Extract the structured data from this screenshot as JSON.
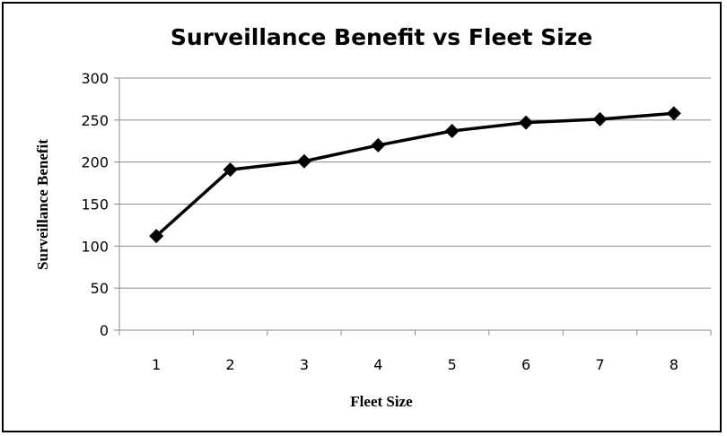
{
  "chart_data": {
    "type": "line",
    "title": "Surveillance Benefit vs Fleet Size",
    "xlabel": "Fleet Size",
    "ylabel": "Surveillance Benefit",
    "categories": [
      "1",
      "2",
      "3",
      "4",
      "5",
      "6",
      "7",
      "8"
    ],
    "series": [
      {
        "values": [
          112,
          191,
          201,
          220,
          237,
          247,
          251,
          258
        ],
        "color": "#000000",
        "marker": "diamond"
      }
    ],
    "ylim": [
      0,
      300
    ],
    "yticks": [
      0,
      50,
      100,
      150,
      200,
      250,
      300
    ],
    "grid": true,
    "legend": "none"
  }
}
